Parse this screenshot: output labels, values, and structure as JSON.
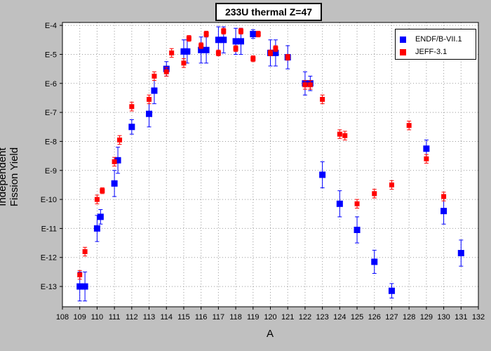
{
  "chart_data": {
    "type": "scatter",
    "title": "233U thermal Z=47",
    "xlabel": "A",
    "ylabel": "Independent Fission Yield",
    "xlim": [
      108,
      132
    ],
    "ylim_log10": [
      -13.7,
      -3.9
    ],
    "y_scale": "log",
    "grid": true,
    "legend_placement": "top-right",
    "x_ticks": [
      "108",
      "109",
      "110",
      "111",
      "112",
      "113",
      "114",
      "115",
      "116",
      "117",
      "118",
      "119",
      "120",
      "121",
      "122",
      "123",
      "124",
      "125",
      "126",
      "127",
      "128",
      "129",
      "130",
      "131",
      "132"
    ],
    "y_ticks": [
      {
        "label": "E-4",
        "exp": -4
      },
      {
        "label": "E-5",
        "exp": -5
      },
      {
        "label": "E-6",
        "exp": -6
      },
      {
        "label": "E-7",
        "exp": -7
      },
      {
        "label": "E-8",
        "exp": -8
      },
      {
        "label": "E-9",
        "exp": -9
      },
      {
        "label": "E-10",
        "exp": -10
      },
      {
        "label": "E-11",
        "exp": -11
      },
      {
        "label": "E-12",
        "exp": -12
      },
      {
        "label": "E-13",
        "exp": -13
      }
    ],
    "series": [
      {
        "name": "ENDF/B-VII.1",
        "color": "#0000ff",
        "marker": "square",
        "points": [
          {
            "x": 109.0,
            "y": -13.0,
            "err": 0.5
          },
          {
            "x": 109.3,
            "y": -13.0,
            "err": 0.5
          },
          {
            "x": 110.0,
            "y": -11.0,
            "err": 0.45
          },
          {
            "x": 110.2,
            "y": -10.6,
            "err": 0.25
          },
          {
            "x": 111.0,
            "y": -9.45,
            "err": 0.45
          },
          {
            "x": 111.2,
            "y": -8.65,
            "err": 0.45
          },
          {
            "x": 112.0,
            "y": -7.5,
            "err": 0.25
          },
          {
            "x": 113.0,
            "y": -7.05,
            "err": 0.45
          },
          {
            "x": 113.3,
            "y": -6.25,
            "err": 0.45
          },
          {
            "x": 114.0,
            "y": -5.5,
            "err": 0.25
          },
          {
            "x": 115.0,
            "y": -4.9,
            "err": 0.4
          },
          {
            "x": 115.2,
            "y": -4.9,
            "err": 0.4
          },
          {
            "x": 116.0,
            "y": -4.85,
            "err": 0.45
          },
          {
            "x": 116.3,
            "y": -4.85,
            "err": 0.45
          },
          {
            "x": 117.0,
            "y": -4.5,
            "err": 0.45
          },
          {
            "x": 117.3,
            "y": -4.5,
            "err": 0.45
          },
          {
            "x": 118.0,
            "y": -4.55,
            "err": 0.45
          },
          {
            "x": 118.3,
            "y": -4.55,
            "err": 0.45
          },
          {
            "x": 119.0,
            "y": -4.3,
            "err": 0.15
          },
          {
            "x": 120.0,
            "y": -4.95,
            "err": 0.45
          },
          {
            "x": 120.3,
            "y": -4.95,
            "err": 0.45
          },
          {
            "x": 121.0,
            "y": -5.1,
            "err": 0.4
          },
          {
            "x": 122.0,
            "y": -6.0,
            "err": 0.4
          },
          {
            "x": 122.3,
            "y": -6.0,
            "err": 0.25
          },
          {
            "x": 123.0,
            "y": -9.15,
            "err": 0.45
          },
          {
            "x": 124.0,
            "y": -10.15,
            "err": 0.45
          },
          {
            "x": 125.0,
            "y": -11.05,
            "err": 0.45
          },
          {
            "x": 126.0,
            "y": -12.15,
            "err": 0.4
          },
          {
            "x": 127.0,
            "y": -13.15,
            "err": 0.25
          },
          {
            "x": 129.0,
            "y": -8.25,
            "err": 0.3
          },
          {
            "x": 130.0,
            "y": -10.4,
            "err": 0.45
          },
          {
            "x": 131.0,
            "y": -11.85,
            "err": 0.45
          }
        ]
      },
      {
        "name": "JEFF-3.1",
        "color": "#ff0000",
        "marker": "square",
        "points": [
          {
            "x": 109.0,
            "y": -12.6,
            "err": 0.15
          },
          {
            "x": 109.3,
            "y": -11.8,
            "err": 0.15
          },
          {
            "x": 110.0,
            "y": -10.0,
            "err": 0.15
          },
          {
            "x": 110.3,
            "y": -9.7,
            "err": 0.1
          },
          {
            "x": 111.0,
            "y": -8.7,
            "err": 0.15
          },
          {
            "x": 111.3,
            "y": -7.95,
            "err": 0.15
          },
          {
            "x": 112.0,
            "y": -6.8,
            "err": 0.15
          },
          {
            "x": 113.0,
            "y": -6.55,
            "err": 0.15
          },
          {
            "x": 113.3,
            "y": -5.75,
            "err": 0.15
          },
          {
            "x": 114.0,
            "y": -5.6,
            "err": 0.15
          },
          {
            "x": 114.3,
            "y": -4.95,
            "err": 0.15
          },
          {
            "x": 115.0,
            "y": -5.3,
            "err": 0.15
          },
          {
            "x": 115.3,
            "y": -4.45,
            "err": 0.1
          },
          {
            "x": 116.0,
            "y": -4.7,
            "err": 0.1
          },
          {
            "x": 116.3,
            "y": -4.3,
            "err": 0.1
          },
          {
            "x": 117.0,
            "y": -4.95,
            "err": 0.1
          },
          {
            "x": 117.3,
            "y": -4.2,
            "err": 0.1
          },
          {
            "x": 118.0,
            "y": -4.8,
            "err": 0.1
          },
          {
            "x": 118.3,
            "y": -4.2,
            "err": 0.1
          },
          {
            "x": 119.0,
            "y": -5.15,
            "err": 0.1
          },
          {
            "x": 119.3,
            "y": -4.3,
            "err": 0.1
          },
          {
            "x": 120.0,
            "y": -4.95,
            "err": 0.1
          },
          {
            "x": 120.3,
            "y": -4.8,
            "err": 0.1
          },
          {
            "x": 121.0,
            "y": -5.1,
            "err": 0.1
          },
          {
            "x": 122.0,
            "y": -6.05,
            "err": 0.15
          },
          {
            "x": 122.3,
            "y": -6.05,
            "err": 0.15
          },
          {
            "x": 123.0,
            "y": -6.55,
            "err": 0.15
          },
          {
            "x": 124.0,
            "y": -7.75,
            "err": 0.15
          },
          {
            "x": 124.3,
            "y": -7.8,
            "err": 0.15
          },
          {
            "x": 125.0,
            "y": -10.15,
            "err": 0.15
          },
          {
            "x": 126.0,
            "y": -9.8,
            "err": 0.15
          },
          {
            "x": 127.0,
            "y": -9.5,
            "err": 0.15
          },
          {
            "x": 128.0,
            "y": -7.45,
            "err": 0.15
          },
          {
            "x": 129.0,
            "y": -8.6,
            "err": 0.15
          },
          {
            "x": 130.0,
            "y": -9.9,
            "err": 0.15
          }
        ]
      }
    ]
  }
}
